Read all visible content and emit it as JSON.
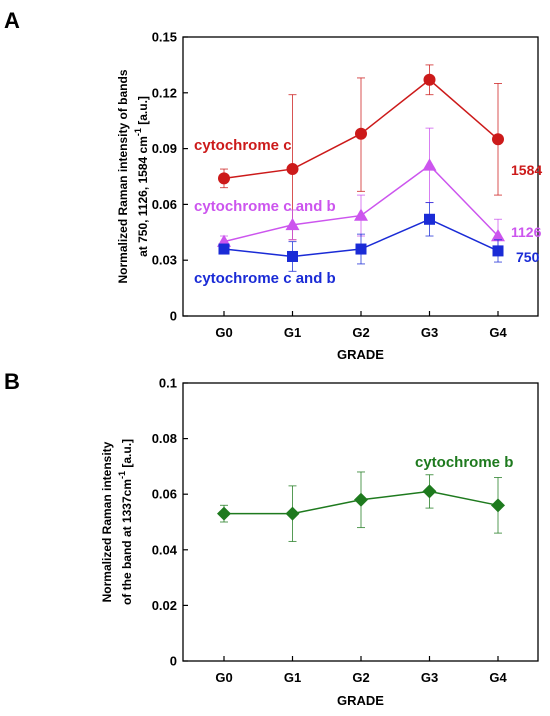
{
  "chart_data": [
    {
      "type": "line",
      "panel": "A",
      "categories": [
        "G0",
        "G1",
        "G2",
        "G3",
        "G4"
      ],
      "xlabel": "GRADE",
      "ylabel_lines": [
        "Normalized Raman intensity of bands",
        "at 750, 1126, 1584 cm",
        "[a.u.]"
      ],
      "ylabel_sup": "-1",
      "ylim": [
        0,
        0.15
      ],
      "yticks": [
        0,
        0.03,
        0.06,
        0.09,
        0.12,
        0.15
      ],
      "ytick_labels": [
        "0",
        "0.03",
        "0.06",
        "0.09",
        "0.12",
        "0.15"
      ],
      "grid": false,
      "series": [
        {
          "label": "cytochrome c",
          "end_label": "1584",
          "marker": "circle",
          "color": "#cc1a1a",
          "values": [
            0.074,
            0.079,
            0.098,
            0.127,
            0.095
          ],
          "err_low": [
            0.069,
            0.041,
            0.067,
            0.119,
            0.065
          ],
          "err_high": [
            0.079,
            0.119,
            0.128,
            0.135,
            0.125
          ]
        },
        {
          "label": "cytochrome c and b",
          "end_label": "1126",
          "marker": "triangle",
          "color": "#cc55ee",
          "values": [
            0.04,
            0.049,
            0.054,
            0.081,
            0.043
          ],
          "err_low": [
            0.037,
            0.041,
            0.043,
            0.061,
            0.035
          ],
          "err_high": [
            0.043,
            0.057,
            0.065,
            0.101,
            0.052
          ]
        },
        {
          "label": "cytochrome c and b",
          "end_label": "750",
          "marker": "square",
          "color": "#1a2bd6",
          "values": [
            0.036,
            0.032,
            0.036,
            0.052,
            0.035
          ],
          "err_low": [
            0.034,
            0.024,
            0.028,
            0.043,
            0.029
          ],
          "err_high": [
            0.038,
            0.04,
            0.044,
            0.061,
            0.041
          ]
        }
      ]
    },
    {
      "type": "line",
      "panel": "B",
      "categories": [
        "G0",
        "G1",
        "G2",
        "G3",
        "G4"
      ],
      "xlabel": "GRADE",
      "ylabel_lines": [
        "Normalized Raman intensity",
        "of the band at  1337cm",
        "[a.u.]"
      ],
      "ylabel_sup": "-1",
      "ylim": [
        0,
        0.1
      ],
      "yticks": [
        0,
        0.02,
        0.04,
        0.06,
        0.08,
        0.1
      ],
      "ytick_labels": [
        "0",
        "0.02",
        "0.04",
        "0.06",
        "0.08",
        "0.1"
      ],
      "grid": false,
      "series": [
        {
          "label": "cytochrome b",
          "marker": "diamond",
          "color": "#1e7a1e",
          "values": [
            0.053,
            0.053,
            0.058,
            0.061,
            0.056
          ],
          "err_low": [
            0.05,
            0.043,
            0.048,
            0.055,
            0.046
          ],
          "err_high": [
            0.056,
            0.063,
            0.068,
            0.067,
            0.066
          ]
        }
      ]
    }
  ]
}
